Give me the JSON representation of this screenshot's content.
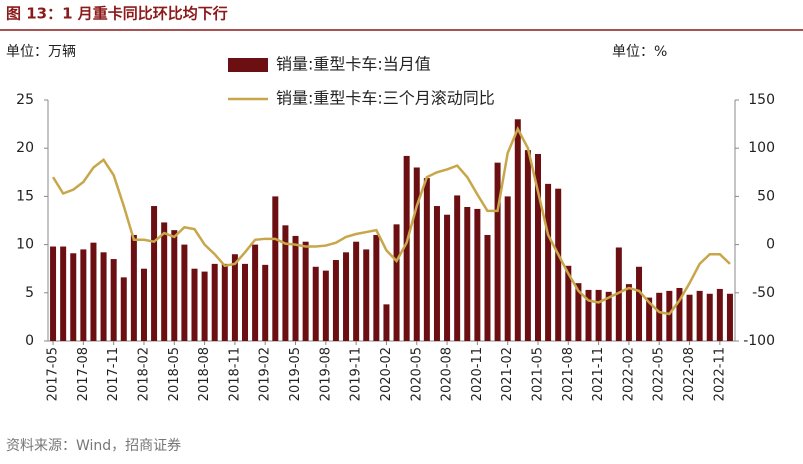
{
  "chart_data": {
    "type": "bar_line",
    "title": "图 13：1 月重卡同比环比均下行",
    "y_unit": "单位：万辆",
    "y2_unit": "单位：%",
    "source": "资料来源：Wind，招商证券",
    "categories": [
      "2017-05",
      null,
      null,
      "2017-08",
      null,
      null,
      "2017-11",
      null,
      null,
      "2018-02",
      null,
      null,
      "2018-05",
      null,
      null,
      "2018-08",
      null,
      null,
      "2018-11",
      null,
      null,
      "2019-02",
      null,
      null,
      "2019-05",
      null,
      null,
      "2019-08",
      null,
      null,
      "2019-11",
      null,
      null,
      "2020-02",
      null,
      null,
      "2020-05",
      null,
      null,
      "2020-08",
      null,
      null,
      "2020-11",
      null,
      null,
      "2021-02",
      null,
      null,
      "2021-05",
      null,
      null,
      "2021-08",
      null,
      null,
      "2021-11",
      null,
      null,
      "2022-02",
      null,
      null,
      "2022-05",
      null,
      null,
      "2022-08",
      null,
      null,
      "2022-11",
      null
    ],
    "series": [
      {
        "name": "销量:重型卡车:当月值",
        "type": "bar",
        "color": "#6b0f12",
        "values": [
          9.8,
          9.8,
          9.1,
          9.5,
          10.2,
          9.2,
          8.5,
          6.6,
          11.0,
          7.5,
          14.0,
          12.3,
          11.5,
          10.0,
          7.5,
          7.2,
          8.0,
          8.0,
          9.0,
          8.0,
          10.0,
          7.9,
          15.0,
          12.0,
          10.9,
          10.3,
          7.7,
          7.3,
          8.4,
          9.2,
          10.3,
          9.5,
          11.0,
          3.8,
          12.1,
          19.2,
          18.0,
          16.9,
          14.0,
          13.1,
          15.1,
          13.9,
          13.7,
          11.0,
          18.5,
          15.0,
          23.0,
          19.8,
          19.4,
          16.3,
          15.8,
          7.8,
          6.0,
          5.3,
          5.3,
          5.1,
          9.7,
          5.9,
          7.7,
          4.5,
          5.0,
          5.2,
          5.5,
          4.8,
          5.2,
          4.9,
          5.4,
          4.9
        ]
      },
      {
        "name": "销量:重型卡车:三个月滚动同比",
        "type": "line",
        "axis": "y2",
        "color": "#c8a64a",
        "values": [
          70,
          53,
          57,
          65,
          80,
          88,
          72,
          40,
          5,
          5,
          3,
          12,
          8,
          18,
          16,
          0,
          -10,
          -22,
          -20,
          -8,
          5,
          6,
          6,
          1,
          0,
          -2,
          -2,
          -1,
          2,
          8,
          11,
          13,
          15,
          -6,
          -17,
          2,
          40,
          70,
          75,
          78,
          82,
          70,
          52,
          35,
          35,
          95,
          120,
          100,
          55,
          10,
          -10,
          -30,
          -48,
          -58,
          -60,
          -55,
          -50,
          -45,
          -48,
          -60,
          -70,
          -72,
          -58,
          -40,
          -20,
          -10,
          -10,
          -20
        ]
      }
    ],
    "ylim": [
      0,
      25
    ],
    "yticks": [
      0,
      5,
      10,
      15,
      20,
      25
    ],
    "y2lim": [
      -100,
      150
    ],
    "y2ticks": [
      -100,
      -50,
      0,
      50,
      100,
      150
    ]
  }
}
